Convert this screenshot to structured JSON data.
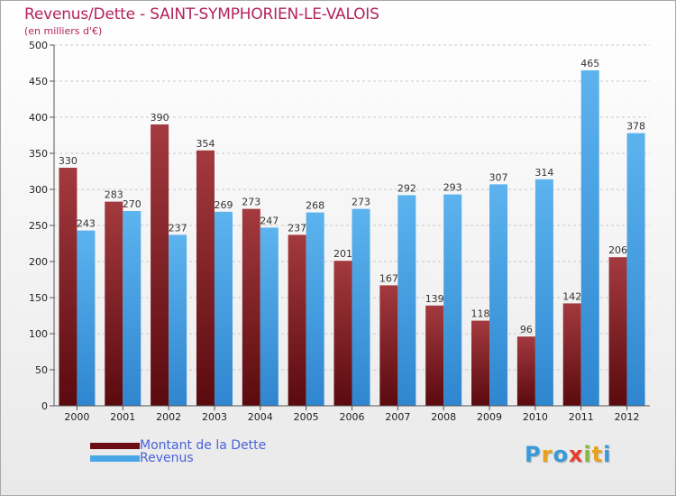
{
  "title": "Revenus/Dette - SAINT-SYMPHORIEN-LE-VALOIS",
  "subtitle": "(en milliers d'€)",
  "logo": [
    "P",
    "r",
    "o",
    "x",
    "i",
    "t",
    "i"
  ],
  "logo_colors": [
    "#3a9ad9",
    "#e8a21b",
    "#3a9ad9",
    "#e63b2e",
    "#89b83a",
    "#e8a21b",
    "#3a9ad9"
  ],
  "chart_data": {
    "type": "bar",
    "categories": [
      "2000",
      "2001",
      "2002",
      "2003",
      "2004",
      "2005",
      "2006",
      "2007",
      "2008",
      "2009",
      "2010",
      "2011",
      "2012"
    ],
    "series": [
      {
        "name": "Montant de la Dette",
        "color": "#7b1a1f",
        "values": [
          330,
          283,
          390,
          354,
          273,
          237,
          201,
          167,
          139,
          118,
          96,
          142,
          206
        ]
      },
      {
        "name": "Revenus",
        "color": "#4aa6e6",
        "values": [
          243,
          270,
          237,
          269,
          247,
          268,
          273,
          292,
          293,
          307,
          314,
          465,
          378
        ]
      }
    ],
    "ylim": [
      0,
      500
    ],
    "yticks": [
      0,
      50,
      100,
      150,
      200,
      250,
      300,
      350,
      400,
      450,
      500
    ],
    "grid": true,
    "legend_position": "bottom-left"
  }
}
